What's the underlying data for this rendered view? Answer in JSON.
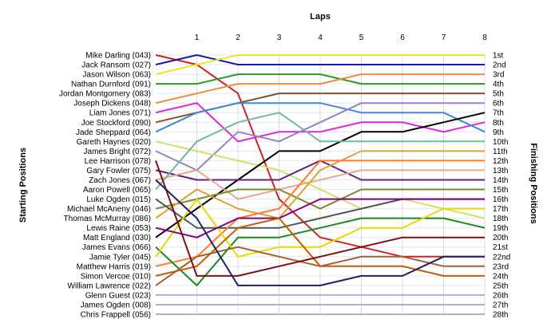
{
  "chart_data": {
    "type": "line",
    "title": "",
    "xlabel": "Laps",
    "ylabel_left": "Starting Positions",
    "ylabel_right": "Finishing Positions",
    "x": [
      0,
      1,
      2,
      3,
      4,
      5,
      6,
      7,
      8
    ],
    "x_tick_labels": [
      "1",
      "2",
      "3",
      "4",
      "5",
      "6",
      "7",
      "8"
    ],
    "y_range": [
      1,
      28
    ],
    "y_inverted": true,
    "grid": true,
    "position_labels": [
      "1st",
      "2nd",
      "3rd",
      "4th",
      "5th",
      "6th",
      "7th",
      "8th",
      "9th",
      "10th",
      "11th",
      "12th",
      "13th",
      "14th",
      "15th",
      "16th",
      "17th",
      "18th",
      "19th",
      "20th",
      "21st",
      "22nd",
      "23rd",
      "24th",
      "25th",
      "26th",
      "27th",
      "28th"
    ],
    "series": [
      {
        "name": "Mike Darling (043)",
        "color": "#d42020",
        "values": [
          1,
          2,
          5,
          16,
          20,
          21,
          22,
          22,
          22
        ]
      },
      {
        "name": "Jack Ransom (027)",
        "color": "#1a1aa0",
        "values": [
          2,
          1,
          2,
          2,
          2,
          2,
          2,
          2,
          2
        ]
      },
      {
        "name": "Jason Wilson (063)",
        "color": "#e8e820",
        "values": [
          3,
          2,
          1,
          1,
          1,
          1,
          1,
          1,
          1
        ]
      },
      {
        "name": "Nathan Durnford (091)",
        "color": "#2a9a2a",
        "values": [
          4,
          4,
          3,
          3,
          3,
          4,
          4,
          4,
          4
        ]
      },
      {
        "name": "Jordan Montgomery (083)",
        "color": "#e89040",
        "values": [
          6,
          5,
          4,
          4,
          4,
          3,
          3,
          3,
          3
        ]
      },
      {
        "name": "Joseph Dickens (048)",
        "color": "#80522a",
        "values": [
          8,
          7,
          6,
          5,
          5,
          5,
          5,
          5,
          5
        ]
      },
      {
        "name": "Liam Jones (071)",
        "color": "#e020e0",
        "values": [
          7,
          6,
          10,
          9,
          9,
          8,
          8,
          9,
          8
        ]
      },
      {
        "name": "Joe Stockford (090)",
        "color": "#3a8ad8",
        "values": [
          9,
          7,
          6,
          6,
          6,
          7,
          7,
          7,
          9
        ]
      },
      {
        "name": "Jade Sheppard (064)",
        "color": "#9a80c8",
        "values": [
          11,
          13,
          9,
          10,
          8,
          6,
          6,
          6,
          6
        ]
      },
      {
        "name": "Gareth Haynes (020)",
        "color": "#d0e060",
        "values": [
          10,
          11,
          12,
          13,
          15,
          17,
          16,
          17,
          18
        ]
      },
      {
        "name": "James Bright (072)",
        "color": "#000000",
        "values": [
          20,
          17,
          14,
          11,
          11,
          9,
          9,
          8,
          7
        ]
      },
      {
        "name": "Lee Harrison (078)",
        "color": "#602080",
        "values": [
          13,
          14,
          14,
          14,
          12,
          14,
          14,
          14,
          14
        ]
      },
      {
        "name": "Gary Fowler (075)",
        "color": "#e8a890",
        "values": [
          14,
          13,
          16,
          15,
          14,
          13,
          13,
          13,
          13
        ]
      },
      {
        "name": "Zach Jones (067)",
        "color": "#7a8a2a",
        "values": [
          17,
          16,
          15,
          15,
          17,
          15,
          15,
          15,
          15
        ]
      },
      {
        "name": "Aaron Powell (065)",
        "color": "#e0a030",
        "values": [
          18,
          15,
          17,
          18,
          13,
          11,
          11,
          11,
          11
        ]
      },
      {
        "name": "Luke Ogden (015)",
        "color": "#70b8a0",
        "values": [
          15,
          10,
          8,
          7,
          10,
          10,
          10,
          10,
          10
        ]
      },
      {
        "name": "Michael McAneny (046)",
        "color": "#4a5a5a",
        "values": [
          16,
          19,
          19,
          19,
          18,
          17,
          16,
          16,
          16
        ]
      },
      {
        "name": "Thomas McMurray (086)",
        "color": "#ff7a2a",
        "values": [
          23,
          22,
          18,
          17,
          12,
          12,
          12,
          12,
          12
        ]
      },
      {
        "name": "Lewis Raine (053)",
        "color": "#1a8a1a",
        "values": [
          21,
          25,
          20,
          20,
          19,
          18,
          18,
          18,
          19
        ]
      },
      {
        "name": "Matt England (030)",
        "color": "#e8d800",
        "values": [
          22,
          16,
          22,
          21,
          21,
          19,
          19,
          17,
          17
        ]
      },
      {
        "name": "James Evans (066)",
        "color": "#800080",
        "values": [
          19,
          20,
          18,
          18,
          16,
          16,
          16,
          16,
          16
        ]
      },
      {
        "name": "Jamie Tyler (045)",
        "color": "#c85a00",
        "values": [
          24,
          23,
          19,
          18,
          23,
          23,
          23,
          24,
          24
        ]
      },
      {
        "name": "Matthew Harris (019)",
        "color": "#a06030",
        "values": [
          25,
          22,
          21,
          22,
          23,
          22,
          22,
          23,
          23
        ]
      },
      {
        "name": "Simon Vercoe (010)",
        "color": "#7a1010",
        "values": [
          12,
          24,
          24,
          23,
          22,
          21,
          20,
          20,
          20
        ]
      },
      {
        "name": "William Lawrence (022)",
        "color": "#202060",
        "values": [
          14,
          18,
          25,
          25,
          25,
          24,
          24,
          22,
          22
        ]
      },
      {
        "name": "Glenn Guest (023)",
        "color": "#b0b0d0",
        "values": [
          26,
          26,
          26,
          26,
          26,
          26,
          26,
          26,
          26
        ]
      },
      {
        "name": "James Ogden (008)",
        "color": "#b0b0d0",
        "values": [
          27,
          27,
          27,
          27,
          27,
          27,
          27,
          27,
          27
        ]
      },
      {
        "name": "Chris Frappell (056)",
        "color": "#b0b0d0",
        "values": [
          28,
          28,
          28,
          28,
          28,
          28,
          28,
          28,
          28
        ]
      }
    ]
  }
}
